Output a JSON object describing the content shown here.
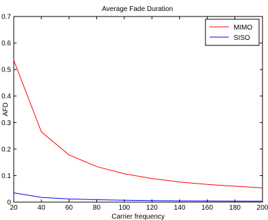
{
  "chart_data": {
    "type": "line",
    "title": "Average Fade Duration",
    "xlabel": "Carrier frequency",
    "ylabel": "AFD",
    "xlim": [
      20,
      200
    ],
    "ylim": [
      0,
      0.7
    ],
    "xticks": [
      20,
      40,
      60,
      80,
      100,
      120,
      140,
      160,
      180,
      200
    ],
    "yticks": [
      0,
      0.1,
      0.2,
      0.3,
      0.4,
      0.5,
      0.6,
      0.7
    ],
    "ytick_labels": [
      "0",
      "0.1",
      "0.2",
      "0.3",
      "0.4",
      "0.5",
      "0.6",
      "0.7"
    ],
    "grid": false,
    "legend_position": "top-right",
    "x": [
      20,
      40,
      60,
      80,
      100,
      120,
      140,
      160,
      180,
      200
    ],
    "series": [
      {
        "name": "MIMO",
        "color": "#ff0000",
        "values": [
          0.535,
          0.265,
          0.178,
          0.134,
          0.107,
          0.089,
          0.076,
          0.067,
          0.06,
          0.054
        ]
      },
      {
        "name": "SISO",
        "color": "#0000ff",
        "values": [
          0.035,
          0.018,
          0.012,
          0.009,
          0.007,
          0.006,
          0.005,
          0.0045,
          0.004,
          0.0035
        ]
      }
    ]
  }
}
